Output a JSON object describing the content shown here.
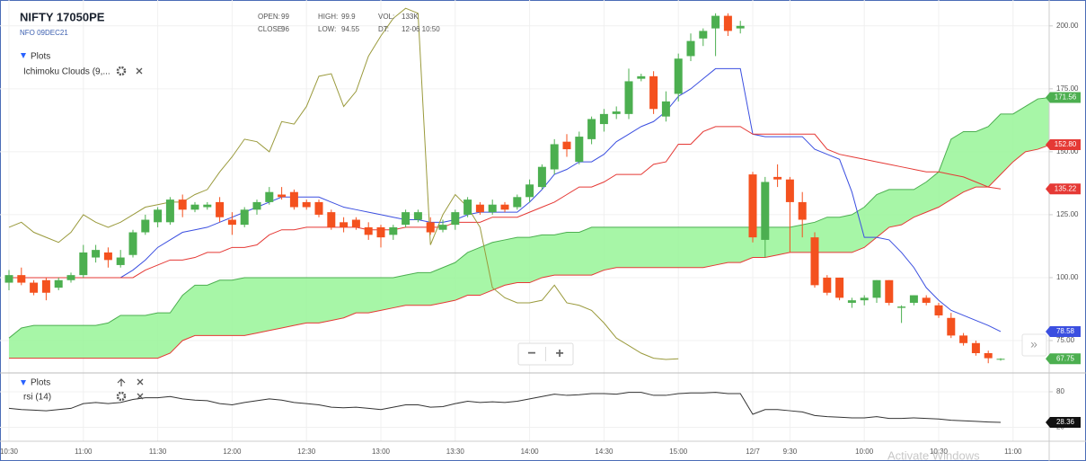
{
  "header": {
    "symbol": "NIFTY 17050PE",
    "exchange": "NFO 09DEC21",
    "ohlc": [
      [
        "OPEN:",
        99
      ],
      [
        "HIGH:",
        99.9
      ],
      [
        "VOL:",
        "133K"
      ],
      [
        "CLOSE:",
        96
      ],
      [
        "LOW:",
        94.55
      ],
      [
        "DT:",
        "12-06 10:50"
      ]
    ]
  },
  "controls": {
    "zoom_out": "−",
    "zoom_in": "+",
    "scroll": "»",
    "watermark": "Activate Windows"
  },
  "chart_data": [
    {
      "type": "candlestick",
      "legend": {
        "title": "Plots",
        "items": [
          "Ichimoku Clouds (9,..."
        ]
      },
      "up_color": "#4caf50",
      "down_color": "#f4511e",
      "open": [
        98,
        101,
        98,
        99,
        96,
        99,
        101,
        108,
        110,
        105,
        109,
        118,
        122,
        122,
        131,
        127,
        128,
        130,
        123,
        121,
        127,
        130,
        133,
        134,
        130,
        130,
        126,
        122,
        123,
        120,
        120,
        117,
        121,
        123,
        122,
        119,
        121,
        125,
        129,
        126,
        129,
        128,
        132,
        136,
        143,
        154,
        146,
        155,
        161,
        165,
        165,
        179,
        180,
        164,
        173,
        188,
        195,
        199,
        204,
        199,
        141,
        115,
        140,
        139,
        130,
        116,
        100,
        100,
        90,
        91,
        92,
        99,
        88,
        90,
        92,
        89,
        84,
        77,
        74,
        70,
        67.5,
        null,
        null,
        null,
        null
      ],
      "high": [
        103,
        104,
        99,
        100,
        100,
        102,
        113,
        113,
        112,
        111,
        119,
        125,
        128,
        132,
        133,
        130,
        130,
        132,
        126,
        128,
        131,
        136,
        136,
        135,
        131,
        131,
        127,
        124,
        124,
        122,
        121,
        121,
        127,
        127,
        124,
        123,
        127,
        132,
        130,
        131,
        130,
        133,
        139,
        145,
        155,
        157,
        158,
        164,
        167,
        168,
        183,
        181,
        182,
        174,
        189,
        197,
        199,
        205,
        205,
        202,
        142,
        140,
        145,
        140,
        134,
        118,
        101,
        100,
        92,
        93,
        99,
        99,
        89,
        93,
        93,
        90,
        86,
        78,
        75,
        71,
        68,
        null,
        null,
        null,
        null
      ],
      "low": [
        95,
        97,
        93,
        91,
        95,
        98,
        100,
        106,
        104,
        104,
        108,
        117,
        120,
        121,
        124,
        126,
        127,
        122,
        117,
        120,
        125,
        129,
        131,
        127,
        127,
        124,
        119,
        118,
        119,
        115,
        112,
        115,
        120,
        122,
        117,
        118,
        119,
        124,
        125,
        125,
        126,
        127,
        130,
        135,
        141,
        148,
        145,
        153,
        158,
        163,
        163,
        178,
        165,
        162,
        170,
        186,
        192,
        188,
        196,
        197,
        114,
        108,
        136,
        110,
        116,
        96,
        93,
        91,
        88,
        89,
        90,
        89,
        82,
        89,
        89,
        84,
        76,
        73,
        69,
        66,
        67,
        null,
        null,
        null,
        null
      ],
      "close": [
        101,
        98,
        94,
        94,
        99,
        101,
        110,
        111,
        107,
        108,
        118,
        123,
        127,
        131,
        127,
        129,
        129,
        124,
        121,
        127,
        130,
        134,
        132,
        128,
        128,
        125,
        120,
        120,
        120,
        117,
        116,
        120,
        126,
        126,
        118,
        121,
        126,
        131,
        126,
        129,
        127,
        132,
        137,
        144,
        153,
        151,
        156,
        163,
        165,
        166,
        178,
        180,
        167,
        170,
        187,
        194,
        198,
        204,
        198,
        200,
        116,
        138,
        139,
        130,
        123,
        97,
        94,
        92,
        91,
        92,
        99,
        90,
        88.5,
        93,
        90,
        85,
        77,
        74,
        70,
        68,
        67.75,
        null,
        null,
        null,
        null
      ],
      "series": [
        {
          "color": "#3b4fe0",
          "values": [
            100,
            100,
            100,
            100,
            100,
            100,
            100,
            100,
            100,
            100,
            103,
            107,
            112,
            115,
            118,
            119,
            120,
            122,
            124,
            126,
            128,
            130,
            132,
            132,
            132,
            132,
            130,
            128,
            127,
            126,
            125,
            124,
            123,
            123,
            122,
            122,
            123,
            125,
            126,
            126,
            126,
            126,
            130,
            135,
            141,
            143,
            146,
            146,
            149,
            154,
            157,
            160,
            162,
            166,
            172,
            175,
            179,
            183,
            183,
            183,
            157,
            156,
            156,
            156,
            156,
            151,
            149,
            147,
            134,
            116,
            116,
            115,
            110,
            104,
            96,
            91,
            87,
            85,
            83,
            81,
            78.58,
            null,
            null,
            null,
            null
          ]
        },
        {
          "color": "#e53935",
          "values": [
            100,
            100,
            100,
            100,
            100,
            100,
            100,
            100,
            100,
            100,
            100,
            103,
            105,
            107,
            107,
            108,
            110,
            110,
            112,
            112,
            113,
            117,
            119,
            119,
            120,
            120,
            120,
            120,
            120,
            119,
            119,
            119,
            120,
            120,
            120,
            120,
            122,
            122,
            122,
            124,
            124,
            124,
            126,
            128,
            130,
            133,
            136,
            136,
            138,
            141,
            141,
            141,
            145,
            146,
            153,
            153,
            158,
            160,
            160,
            160,
            157,
            157,
            157,
            157,
            157,
            157,
            151,
            149,
            148,
            147,
            146,
            145,
            144,
            143,
            142,
            142,
            141,
            140,
            138,
            136,
            135.22,
            null,
            null,
            null,
            null
          ]
        },
        {
          "color": "#9a9a3c",
          "values": [
            120,
            122,
            118,
            116,
            114,
            118,
            125,
            122,
            120,
            122,
            125,
            128,
            129,
            130,
            130,
            133,
            135,
            142,
            148,
            155,
            154,
            150,
            162,
            161,
            168,
            180,
            181,
            168,
            174,
            188,
            196,
            203,
            207,
            205,
            113,
            125,
            133,
            128,
            120,
            96,
            92,
            90,
            90,
            91,
            97,
            90,
            89,
            87,
            82,
            76,
            73,
            70,
            68,
            67.5,
            67.75,
            null,
            null,
            null,
            null,
            null,
            null,
            null,
            null,
            null,
            null,
            null,
            null,
            null,
            null,
            null,
            null,
            null,
            null,
            null,
            null,
            null,
            null,
            null,
            null,
            null,
            null,
            null,
            null,
            null,
            null
          ]
        }
      ],
      "cloud": {
        "color": "#98f598",
        "series": [
          {
            "color": "#4caf50",
            "values": [
              76,
              80,
              81,
              81,
              81,
              81,
              81,
              81,
              82,
              85,
              85,
              85,
              86,
              86,
              93,
              97,
              97,
              99,
              99,
              100,
              100,
              100,
              100,
              100,
              100,
              100,
              100,
              100,
              100,
              100,
              100,
              100,
              101,
              102,
              102,
              104,
              106,
              110,
              112,
              114,
              115,
              116,
              116,
              117,
              117,
              118,
              118,
              120,
              120,
              120,
              120,
              120,
              120,
              120,
              120,
              120,
              120,
              120,
              120,
              120,
              120,
              120,
              120,
              120,
              121,
              122,
              124,
              124,
              125,
              128,
              133,
              135,
              135,
              135,
              138,
              142,
              155,
              158,
              158,
              160,
              165,
              165,
              168,
              171,
              171.56
            ]
          },
          {
            "color": "#e53935",
            "values": [
              68,
              68,
              68,
              68,
              68,
              68,
              68,
              68,
              68,
              68,
              68,
              68,
              68,
              70,
              75,
              77,
              77,
              77,
              77,
              77,
              78,
              79,
              80,
              81,
              82,
              82,
              83,
              84,
              86,
              86,
              87,
              88,
              89,
              89,
              89,
              90,
              91,
              93,
              93,
              95,
              97,
              98,
              98,
              100,
              101,
              101,
              101,
              101,
              103,
              104,
              104,
              104,
              104,
              104,
              104,
              104,
              104,
              105,
              106,
              106,
              108,
              108,
              109,
              110,
              110,
              110,
              110,
              110,
              110,
              112,
              116,
              120,
              121,
              124,
              126,
              128,
              131,
              134,
              136,
              136,
              141,
              146,
              150,
              151,
              152.8
            ]
          }
        ]
      },
      "markers": [
        {
          "value": 171.56,
          "label": "171.56",
          "color": "#4caf50"
        },
        {
          "value": 152.8,
          "label": "152.80",
          "color": "#e53935"
        },
        {
          "value": 135.22,
          "label": "135.22",
          "color": "#e53935"
        },
        {
          "value": 78.58,
          "label": "78.58",
          "color": "#3b4fe0"
        },
        {
          "value": 67.75,
          "label": "67.75",
          "color": "#4caf50"
        }
      ],
      "ylim": [
        63,
        208.5
      ],
      "yticks": [
        {
          "value": 75,
          "label": "75.00"
        },
        {
          "value": 100,
          "label": "100.00"
        },
        {
          "value": 125,
          "label": "125.00"
        },
        {
          "value": 150,
          "label": "150.00"
        },
        {
          "value": 175,
          "label": "175.00"
        },
        {
          "value": 200,
          "label": "200.00"
        }
      ],
      "grid": true
    },
    {
      "type": "line",
      "legend": {
        "title": "Plots",
        "items": [
          "rsi (14)"
        ]
      },
      "categories": [
        "10:30",
        null,
        null,
        null,
        null,
        null,
        "11:00",
        null,
        null,
        null,
        null,
        null,
        "11:30",
        null,
        null,
        null,
        null,
        null,
        "12:00",
        null,
        null,
        null,
        null,
        null,
        "12:30",
        null,
        null,
        null,
        null,
        null,
        "13:00",
        null,
        null,
        null,
        null,
        null,
        "13:30",
        null,
        null,
        null,
        null,
        null,
        "14:00",
        null,
        null,
        null,
        null,
        null,
        "14:30",
        null,
        null,
        null,
        null,
        null,
        "15:00",
        null,
        null,
        null,
        null,
        null,
        "12/7",
        null,
        null,
        "9:30",
        null,
        null,
        null,
        null,
        null,
        "10:00",
        null,
        null,
        null,
        null,
        null,
        "10:30",
        null,
        null,
        null,
        null,
        null,
        "11:00",
        null,
        null,
        null
      ],
      "series": [
        {
          "color": "#333333",
          "values": [
            52,
            50,
            49,
            48,
            50,
            52,
            60,
            62,
            60,
            62,
            67,
            70,
            70,
            72,
            68,
            66,
            65,
            60,
            58,
            62,
            65,
            68,
            66,
            62,
            60,
            58,
            54,
            53,
            54,
            52,
            50,
            54,
            58,
            58,
            54,
            55,
            60,
            64,
            62,
            63,
            62,
            64,
            68,
            72,
            76,
            74,
            75,
            77,
            77,
            76,
            79,
            79,
            74,
            74,
            77,
            78,
            78,
            79,
            77,
            77,
            42,
            50,
            50,
            48,
            46,
            40,
            38,
            37,
            36,
            36,
            38,
            35,
            35,
            36,
            35,
            34,
            32,
            31,
            30,
            29,
            28.36,
            null,
            null,
            null,
            null
          ]
        }
      ],
      "markers": [
        {
          "value": 28.36,
          "label": "28.36",
          "color": "#111111"
        }
      ],
      "ylim": [
        -2,
        107.3
      ],
      "yticks": [
        20,
        80
      ],
      "grid": true
    }
  ]
}
